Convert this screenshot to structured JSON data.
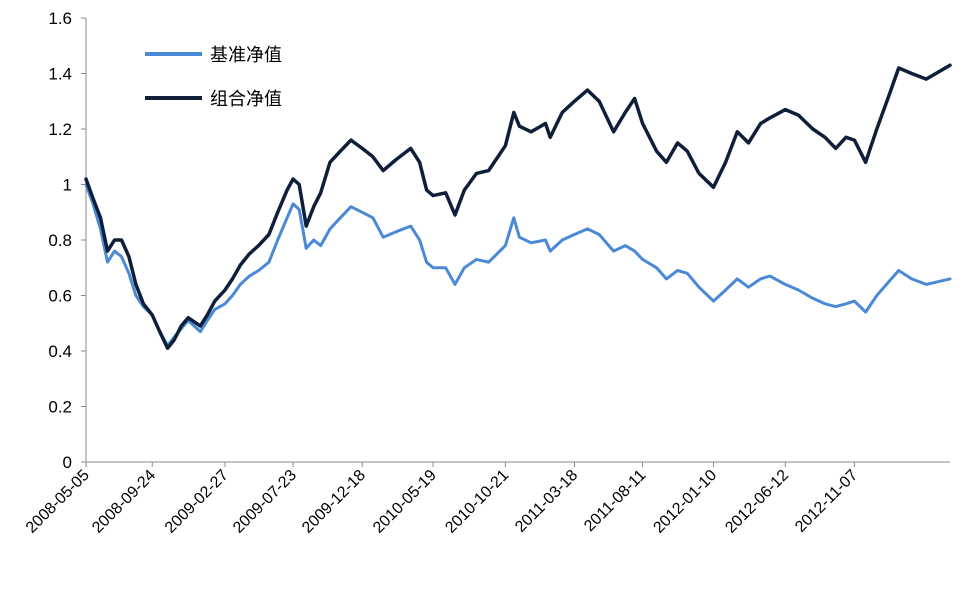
{
  "chart_data": {
    "type": "line",
    "title": "",
    "xlabel": "",
    "ylabel": "",
    "ylim": [
      0,
      1.6
    ],
    "y_ticks": [
      "0",
      "0.2",
      "0.4",
      "0.6",
      "0.8",
      "1",
      "1.2",
      "1.4",
      "1.6"
    ],
    "x_tick_labels": [
      "2008-05-05",
      "2008-09-24",
      "2009-02-27",
      "2009-07-23",
      "2009-12-18",
      "2010-05-19",
      "2010-10-21",
      "2011-03-18",
      "2011-08-11",
      "2012-01-10",
      "2012-06-12",
      "2012-11-07"
    ],
    "x_range": [
      "2008-05-05",
      "2013-05-31"
    ],
    "grid": false,
    "legend_position": "top-left",
    "series": [
      {
        "name": "基准净值",
        "color": "#4a89d6",
        "points": [
          [
            "2008-05-05",
            1.0
          ],
          [
            "2008-05-20",
            0.93
          ],
          [
            "2008-06-05",
            0.84
          ],
          [
            "2008-06-20",
            0.72
          ],
          [
            "2008-07-05",
            0.76
          ],
          [
            "2008-07-20",
            0.74
          ],
          [
            "2008-08-05",
            0.68
          ],
          [
            "2008-08-20",
            0.6
          ],
          [
            "2008-09-05",
            0.56
          ],
          [
            "2008-09-24",
            0.53
          ],
          [
            "2008-10-10",
            0.47
          ],
          [
            "2008-10-27",
            0.42
          ],
          [
            "2008-11-10",
            0.45
          ],
          [
            "2008-11-25",
            0.48
          ],
          [
            "2008-12-10",
            0.51
          ],
          [
            "2009-01-05",
            0.47
          ],
          [
            "2009-01-20",
            0.51
          ],
          [
            "2009-02-05",
            0.55
          ],
          [
            "2009-02-27",
            0.57
          ],
          [
            "2009-03-15",
            0.6
          ],
          [
            "2009-04-01",
            0.64
          ],
          [
            "2009-04-20",
            0.67
          ],
          [
            "2009-05-10",
            0.69
          ],
          [
            "2009-06-01",
            0.72
          ],
          [
            "2009-06-20",
            0.8
          ],
          [
            "2009-07-10",
            0.88
          ],
          [
            "2009-07-23",
            0.93
          ],
          [
            "2009-08-05",
            0.91
          ],
          [
            "2009-08-20",
            0.77
          ],
          [
            "2009-09-05",
            0.8
          ],
          [
            "2009-09-20",
            0.78
          ],
          [
            "2009-10-10",
            0.84
          ],
          [
            "2009-11-01",
            0.88
          ],
          [
            "2009-11-24",
            0.92
          ],
          [
            "2009-12-18",
            0.9
          ],
          [
            "2010-01-10",
            0.88
          ],
          [
            "2010-02-01",
            0.81
          ],
          [
            "2010-03-01",
            0.83
          ],
          [
            "2010-04-01",
            0.85
          ],
          [
            "2010-04-20",
            0.8
          ],
          [
            "2010-05-05",
            0.72
          ],
          [
            "2010-05-19",
            0.7
          ],
          [
            "2010-06-15",
            0.7
          ],
          [
            "2010-07-05",
            0.64
          ],
          [
            "2010-07-25",
            0.7
          ],
          [
            "2010-08-20",
            0.73
          ],
          [
            "2010-09-15",
            0.72
          ],
          [
            "2010-10-21",
            0.78
          ],
          [
            "2010-11-08",
            0.88
          ],
          [
            "2010-11-20",
            0.81
          ],
          [
            "2010-12-15",
            0.79
          ],
          [
            "2011-01-15",
            0.8
          ],
          [
            "2011-01-25",
            0.76
          ],
          [
            "2011-02-20",
            0.8
          ],
          [
            "2011-03-18",
            0.82
          ],
          [
            "2011-04-15",
            0.84
          ],
          [
            "2011-05-10",
            0.82
          ],
          [
            "2011-06-10",
            0.76
          ],
          [
            "2011-07-05",
            0.78
          ],
          [
            "2011-07-25",
            0.76
          ],
          [
            "2011-08-11",
            0.73
          ],
          [
            "2011-09-10",
            0.7
          ],
          [
            "2011-10-01",
            0.66
          ],
          [
            "2011-10-25",
            0.69
          ],
          [
            "2011-11-15",
            0.68
          ],
          [
            "2011-12-10",
            0.63
          ],
          [
            "2012-01-10",
            0.58
          ],
          [
            "2012-02-05",
            0.62
          ],
          [
            "2012-03-01",
            0.66
          ],
          [
            "2012-03-25",
            0.63
          ],
          [
            "2012-04-20",
            0.66
          ],
          [
            "2012-05-10",
            0.67
          ],
          [
            "2012-06-12",
            0.64
          ],
          [
            "2012-07-10",
            0.62
          ],
          [
            "2012-08-10",
            0.59
          ],
          [
            "2012-09-05",
            0.57
          ],
          [
            "2012-09-28",
            0.56
          ],
          [
            "2012-10-20",
            0.57
          ],
          [
            "2012-11-07",
            0.58
          ],
          [
            "2012-12-01",
            0.54
          ],
          [
            "2012-12-25",
            0.6
          ],
          [
            "2013-01-20",
            0.65
          ],
          [
            "2013-02-10",
            0.69
          ],
          [
            "2013-03-10",
            0.66
          ],
          [
            "2013-04-10",
            0.64
          ],
          [
            "2013-05-31",
            0.66
          ]
        ]
      },
      {
        "name": "组合净值",
        "color": "#0f1f3a",
        "points": [
          [
            "2008-05-05",
            1.02
          ],
          [
            "2008-05-20",
            0.95
          ],
          [
            "2008-06-05",
            0.88
          ],
          [
            "2008-06-20",
            0.76
          ],
          [
            "2008-07-05",
            0.8
          ],
          [
            "2008-07-20",
            0.8
          ],
          [
            "2008-08-05",
            0.74
          ],
          [
            "2008-08-20",
            0.64
          ],
          [
            "2008-09-05",
            0.57
          ],
          [
            "2008-09-24",
            0.53
          ],
          [
            "2008-10-10",
            0.47
          ],
          [
            "2008-10-27",
            0.41
          ],
          [
            "2008-11-10",
            0.44
          ],
          [
            "2008-11-25",
            0.49
          ],
          [
            "2008-12-10",
            0.52
          ],
          [
            "2009-01-05",
            0.49
          ],
          [
            "2009-01-20",
            0.53
          ],
          [
            "2009-02-05",
            0.58
          ],
          [
            "2009-02-27",
            0.62
          ],
          [
            "2009-03-15",
            0.66
          ],
          [
            "2009-04-01",
            0.71
          ],
          [
            "2009-04-20",
            0.75
          ],
          [
            "2009-05-10",
            0.78
          ],
          [
            "2009-06-01",
            0.82
          ],
          [
            "2009-06-20",
            0.9
          ],
          [
            "2009-07-10",
            0.98
          ],
          [
            "2009-07-23",
            1.02
          ],
          [
            "2009-08-05",
            1.0
          ],
          [
            "2009-08-20",
            0.85
          ],
          [
            "2009-09-05",
            0.92
          ],
          [
            "2009-09-20",
            0.97
          ],
          [
            "2009-10-10",
            1.08
          ],
          [
            "2009-11-01",
            1.12
          ],
          [
            "2009-11-24",
            1.16
          ],
          [
            "2009-12-18",
            1.13
          ],
          [
            "2010-01-10",
            1.1
          ],
          [
            "2010-02-01",
            1.05
          ],
          [
            "2010-03-01",
            1.09
          ],
          [
            "2010-04-01",
            1.13
          ],
          [
            "2010-04-20",
            1.08
          ],
          [
            "2010-05-05",
            0.98
          ],
          [
            "2010-05-19",
            0.96
          ],
          [
            "2010-06-15",
            0.97
          ],
          [
            "2010-07-05",
            0.89
          ],
          [
            "2010-07-25",
            0.98
          ],
          [
            "2010-08-20",
            1.04
          ],
          [
            "2010-09-15",
            1.05
          ],
          [
            "2010-10-21",
            1.14
          ],
          [
            "2010-11-08",
            1.26
          ],
          [
            "2010-11-20",
            1.21
          ],
          [
            "2010-12-15",
            1.19
          ],
          [
            "2011-01-15",
            1.22
          ],
          [
            "2011-01-25",
            1.17
          ],
          [
            "2011-02-20",
            1.26
          ],
          [
            "2011-03-18",
            1.3
          ],
          [
            "2011-04-15",
            1.34
          ],
          [
            "2011-05-10",
            1.3
          ],
          [
            "2011-06-10",
            1.19
          ],
          [
            "2011-07-05",
            1.26
          ],
          [
            "2011-07-25",
            1.31
          ],
          [
            "2011-08-11",
            1.22
          ],
          [
            "2011-09-10",
            1.12
          ],
          [
            "2011-10-01",
            1.08
          ],
          [
            "2011-10-25",
            1.15
          ],
          [
            "2011-11-15",
            1.12
          ],
          [
            "2011-12-10",
            1.04
          ],
          [
            "2012-01-10",
            0.99
          ],
          [
            "2012-02-05",
            1.08
          ],
          [
            "2012-03-01",
            1.19
          ],
          [
            "2012-03-25",
            1.15
          ],
          [
            "2012-04-20",
            1.22
          ],
          [
            "2012-05-10",
            1.24
          ],
          [
            "2012-06-12",
            1.27
          ],
          [
            "2012-07-10",
            1.25
          ],
          [
            "2012-08-10",
            1.2
          ],
          [
            "2012-09-05",
            1.17
          ],
          [
            "2012-09-28",
            1.13
          ],
          [
            "2012-10-20",
            1.17
          ],
          [
            "2012-11-07",
            1.16
          ],
          [
            "2012-12-01",
            1.08
          ],
          [
            "2012-12-25",
            1.2
          ],
          [
            "2013-01-20",
            1.32
          ],
          [
            "2013-02-10",
            1.42
          ],
          [
            "2013-03-10",
            1.4
          ],
          [
            "2013-04-10",
            1.38
          ],
          [
            "2013-05-31",
            1.43
          ]
        ]
      }
    ]
  }
}
